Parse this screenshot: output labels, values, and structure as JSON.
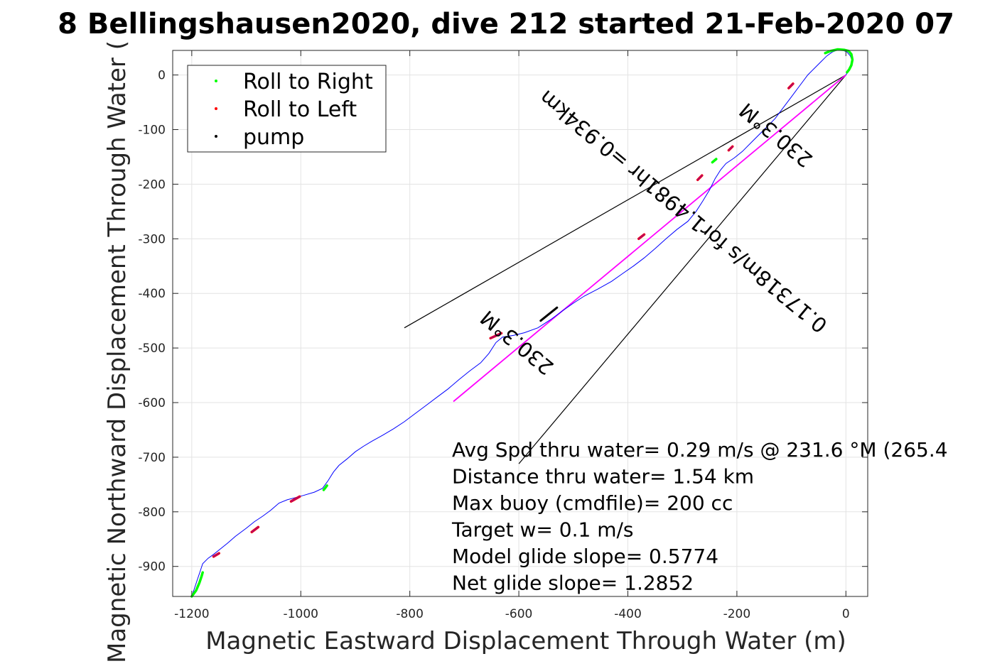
{
  "chart_data": {
    "type": "line",
    "title": "8 Bellingshausen2020, dive 212 started 21-Feb-2020 07",
    "xlabel": "Magnetic Eastward Displacement Through Water (m)",
    "ylabel": "Magnetic Northward Displacement Through Water (",
    "xlim": [
      -1235,
      40
    ],
    "ylim": [
      -955,
      45
    ],
    "xticks": [
      -1200,
      -1000,
      -800,
      -600,
      -400,
      -200,
      0
    ],
    "yticks": [
      0,
      -100,
      -200,
      -300,
      -400,
      -500,
      -600,
      -700,
      -800,
      -900
    ],
    "xtick_labels": [
      "-1200",
      "-1000",
      "-800",
      "-600",
      "-400",
      "-200",
      "0"
    ],
    "ytick_labels": [
      "0",
      "-100",
      "-200",
      "-300",
      "-400",
      "-500",
      "-600",
      "-700",
      "-800",
      "-900"
    ],
    "grid": true,
    "legend_position": "top-left",
    "legend": [
      {
        "label": "Roll to Right",
        "color": "#00ff00"
      },
      {
        "label": "Roll to Left",
        "color": "#ff0000"
      },
      {
        "label": "pump",
        "color": "#000000"
      }
    ],
    "track": {
      "name": "track",
      "color": "#0000ff",
      "x": [
        -1200,
        -1195,
        -1190,
        -1185,
        -1180,
        -1170,
        -1160,
        -1150,
        -1135,
        -1120,
        -1100,
        -1085,
        -1070,
        -1055,
        -1040,
        -1025,
        -1010,
        -995,
        -975,
        -960,
        -950,
        -940,
        -930,
        -915,
        -900,
        -885,
        -870,
        -850,
        -830,
        -810,
        -790,
        -770,
        -750,
        -730,
        -710,
        -690,
        -670,
        -655,
        -642,
        -630,
        -610,
        -590,
        -565,
        -540,
        -520,
        -500,
        -480,
        -455,
        -430,
        -410,
        -390,
        -370,
        -350,
        -330,
        -310,
        -290,
        -275,
        -262,
        -250,
        -240,
        -230,
        -220,
        -205,
        -190,
        -170,
        -150,
        -130,
        -115,
        -100,
        -85,
        -70,
        -58,
        -45,
        -35,
        -25,
        -15,
        -5,
        2,
        8,
        12,
        10,
        5,
        0
      ],
      "y": [
        -955,
        -940,
        -925,
        -910,
        -895,
        -885,
        -878,
        -870,
        -858,
        -845,
        -830,
        -818,
        -808,
        -797,
        -784,
        -778,
        -774,
        -770,
        -764,
        -757,
        -743,
        -727,
        -715,
        -703,
        -690,
        -680,
        -671,
        -660,
        -648,
        -635,
        -620,
        -605,
        -590,
        -575,
        -558,
        -542,
        -527,
        -510,
        -490,
        -480,
        -477,
        -472,
        -463,
        -447,
        -432,
        -418,
        -405,
        -392,
        -378,
        -364,
        -350,
        -335,
        -318,
        -300,
        -283,
        -268,
        -250,
        -230,
        -210,
        -190,
        -174,
        -162,
        -152,
        -140,
        -120,
        -100,
        -80,
        -60,
        -40,
        -20,
        0,
        12,
        25,
        35,
        42,
        46,
        45,
        42,
        35,
        25,
        15,
        8,
        0
      ]
    },
    "track_roll_right": [
      {
        "x": [
          -1200,
          -1192,
          -1186,
          -1182,
          -1180
        ],
        "y": [
          -955,
          -944,
          -930,
          -918,
          -911
        ]
      },
      {
        "x": [
          -958,
          -952
        ],
        "y": [
          -760,
          -752
        ]
      },
      {
        "x": [
          -245,
          -238
        ],
        "y": [
          -160,
          -154
        ]
      },
      {
        "x": [
          -38,
          -28,
          -15,
          -3,
          5,
          10,
          12,
          10,
          6,
          2
        ],
        "y": [
          40,
          44,
          47,
          46,
          44,
          38,
          28,
          18,
          10,
          5
        ]
      }
    ],
    "track_roll_left": [
      {
        "x": [
          -1160,
          -1150
        ],
        "y": [
          -882,
          -876
        ]
      },
      {
        "x": [
          -1090,
          -1078
        ],
        "y": [
          -837,
          -828
        ]
      },
      {
        "x": [
          -1018,
          -1002
        ],
        "y": [
          -781,
          -772
        ]
      },
      {
        "x": [
          -652,
          -632
        ],
        "y": [
          -482,
          -473
        ]
      },
      {
        "x": [
          -380,
          -370
        ],
        "y": [
          -300,
          -292
        ]
      },
      {
        "x": [
          -272,
          -264
        ],
        "y": [
          -192,
          -184
        ]
      },
      {
        "x": [
          -215,
          -208
        ],
        "y": [
          -138,
          -131
        ]
      },
      {
        "x": [
          -105,
          -97
        ],
        "y": [
          -24,
          -16
        ]
      }
    ],
    "track_pump": [
      {
        "x": [
          -560,
          -530
        ],
        "y": [
          -450,
          -426
        ]
      }
    ],
    "net_vector": {
      "color": "#ff00ff",
      "x": [
        -720,
        0
      ],
      "y": [
        -598,
        0
      ]
    },
    "wedge_lines": [
      {
        "x": [
          0,
          -810
        ],
        "y": [
          0,
          -463
        ]
      },
      {
        "x": [
          0,
          -600
        ],
        "y": [
          0,
          -712
        ]
      }
    ],
    "glide_labels": [
      {
        "text": "0.17318m/s for1.4981hr =0.934km",
        "x": -290,
        "y": -240,
        "rotation": 219.7
      },
      {
        "text": "230.3°M",
        "x": -120,
        "y": -100,
        "rotation": 219.7
      },
      {
        "text": "230.3°M",
        "x": -595,
        "y": -480,
        "rotation": 219.7
      }
    ],
    "annotations": [
      "Avg Spd thru water=  0.29 m/s @ 231.6 °M (265.4",
      "Distance thru water=  1.54 km",
      "Max buoy (cmdfile)= 200 cc",
      "Target w= 0.1 m/s",
      "Model glide slope= 0.5774",
      "Net glide slope= 1.2852"
    ]
  }
}
